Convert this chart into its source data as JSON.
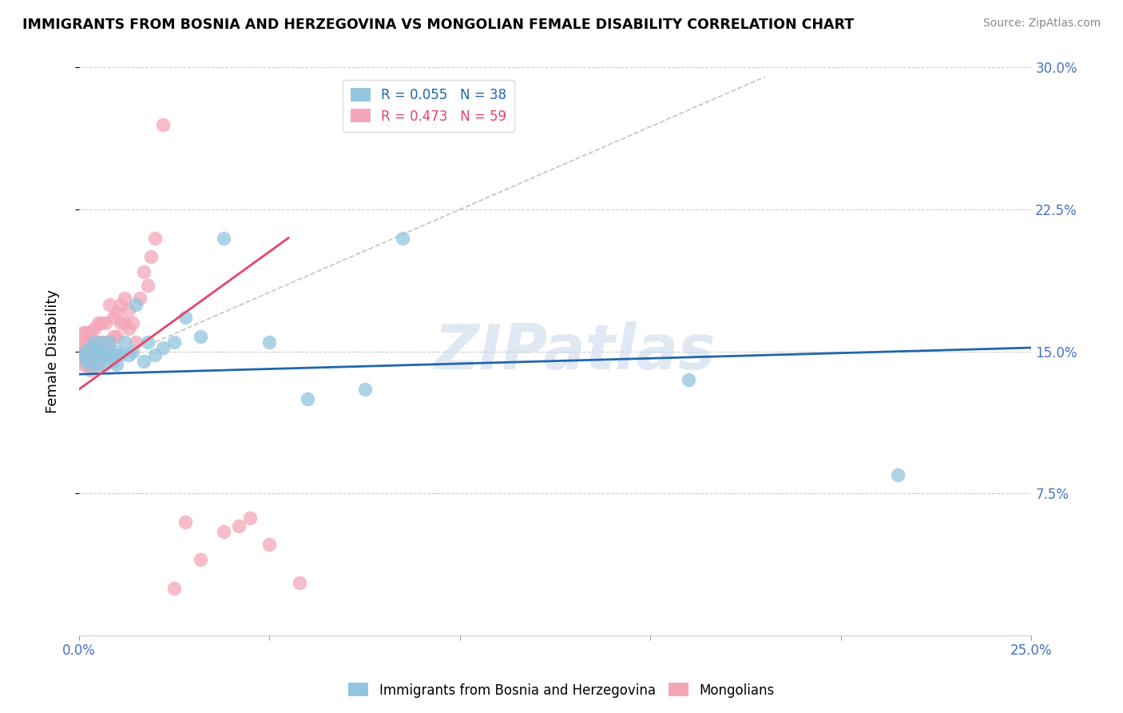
{
  "title": "IMMIGRANTS FROM BOSNIA AND HERZEGOVINA VS MONGOLIAN FEMALE DISABILITY CORRELATION CHART",
  "source": "Source: ZipAtlas.com",
  "ylabel": "Female Disability",
  "xlim": [
    0.0,
    0.25
  ],
  "ylim": [
    0.0,
    0.3
  ],
  "xticks": [
    0.0,
    0.05,
    0.1,
    0.15,
    0.2,
    0.25
  ],
  "yticks": [
    0.075,
    0.15,
    0.225,
    0.3
  ],
  "ytick_labels_right": [
    "7.5%",
    "15.0%",
    "22.5%",
    "30.0%"
  ],
  "xtick_labels": [
    "0.0%",
    "",
    "",
    "",
    "",
    "25.0%"
  ],
  "watermark": "ZIPatlas",
  "legend_blue_r": "R = 0.055",
  "legend_blue_n": "N = 38",
  "legend_pink_r": "R = 0.473",
  "legend_pink_n": "N = 59",
  "color_blue": "#92c5de",
  "color_pink": "#f4a6b8",
  "color_blue_line": "#2166ac",
  "color_pink_line": "#e8436a",
  "color_axis_label": "#4472c4",
  "blue_points_x": [
    0.001,
    0.002,
    0.002,
    0.003,
    0.003,
    0.004,
    0.004,
    0.005,
    0.005,
    0.006,
    0.006,
    0.007,
    0.007,
    0.008,
    0.008,
    0.009,
    0.009,
    0.01,
    0.01,
    0.011,
    0.012,
    0.013,
    0.014,
    0.015,
    0.017,
    0.018,
    0.02,
    0.022,
    0.025,
    0.028,
    0.032,
    0.038,
    0.05,
    0.06,
    0.075,
    0.085,
    0.16,
    0.215
  ],
  "blue_points_y": [
    0.148,
    0.145,
    0.15,
    0.143,
    0.152,
    0.148,
    0.155,
    0.143,
    0.15,
    0.148,
    0.155,
    0.143,
    0.15,
    0.148,
    0.155,
    0.145,
    0.148,
    0.15,
    0.143,
    0.148,
    0.155,
    0.148,
    0.15,
    0.175,
    0.145,
    0.155,
    0.148,
    0.152,
    0.155,
    0.168,
    0.158,
    0.21,
    0.155,
    0.125,
    0.13,
    0.21,
    0.135,
    0.085
  ],
  "pink_points_x": [
    0.0003,
    0.0005,
    0.001,
    0.001,
    0.001,
    0.001,
    0.0015,
    0.002,
    0.002,
    0.002,
    0.002,
    0.003,
    0.003,
    0.003,
    0.003,
    0.003,
    0.004,
    0.004,
    0.004,
    0.004,
    0.005,
    0.005,
    0.005,
    0.005,
    0.006,
    0.006,
    0.006,
    0.007,
    0.007,
    0.007,
    0.008,
    0.008,
    0.009,
    0.009,
    0.009,
    0.01,
    0.01,
    0.011,
    0.011,
    0.012,
    0.012,
    0.013,
    0.013,
    0.014,
    0.015,
    0.016,
    0.017,
    0.018,
    0.019,
    0.02,
    0.022,
    0.025,
    0.028,
    0.032,
    0.038,
    0.042,
    0.045,
    0.05,
    0.058
  ],
  "pink_points_y": [
    0.148,
    0.15,
    0.143,
    0.148,
    0.155,
    0.16,
    0.148,
    0.143,
    0.148,
    0.155,
    0.16,
    0.14,
    0.145,
    0.148,
    0.155,
    0.16,
    0.143,
    0.148,
    0.155,
    0.162,
    0.143,
    0.148,
    0.155,
    0.165,
    0.148,
    0.155,
    0.165,
    0.148,
    0.155,
    0.165,
    0.155,
    0.175,
    0.148,
    0.158,
    0.168,
    0.158,
    0.17,
    0.165,
    0.175,
    0.165,
    0.178,
    0.162,
    0.172,
    0.165,
    0.155,
    0.178,
    0.192,
    0.185,
    0.2,
    0.21,
    0.27,
    0.025,
    0.06,
    0.04,
    0.055,
    0.058,
    0.062,
    0.048,
    0.028
  ],
  "blue_trend_x": [
    0.0,
    0.25
  ],
  "blue_trend_y": [
    0.138,
    0.152
  ],
  "pink_trend_x": [
    0.0,
    0.055
  ],
  "pink_trend_y": [
    0.13,
    0.21
  ],
  "diag_line_x": [
    0.02,
    0.18
  ],
  "diag_line_y": [
    0.155,
    0.295
  ]
}
